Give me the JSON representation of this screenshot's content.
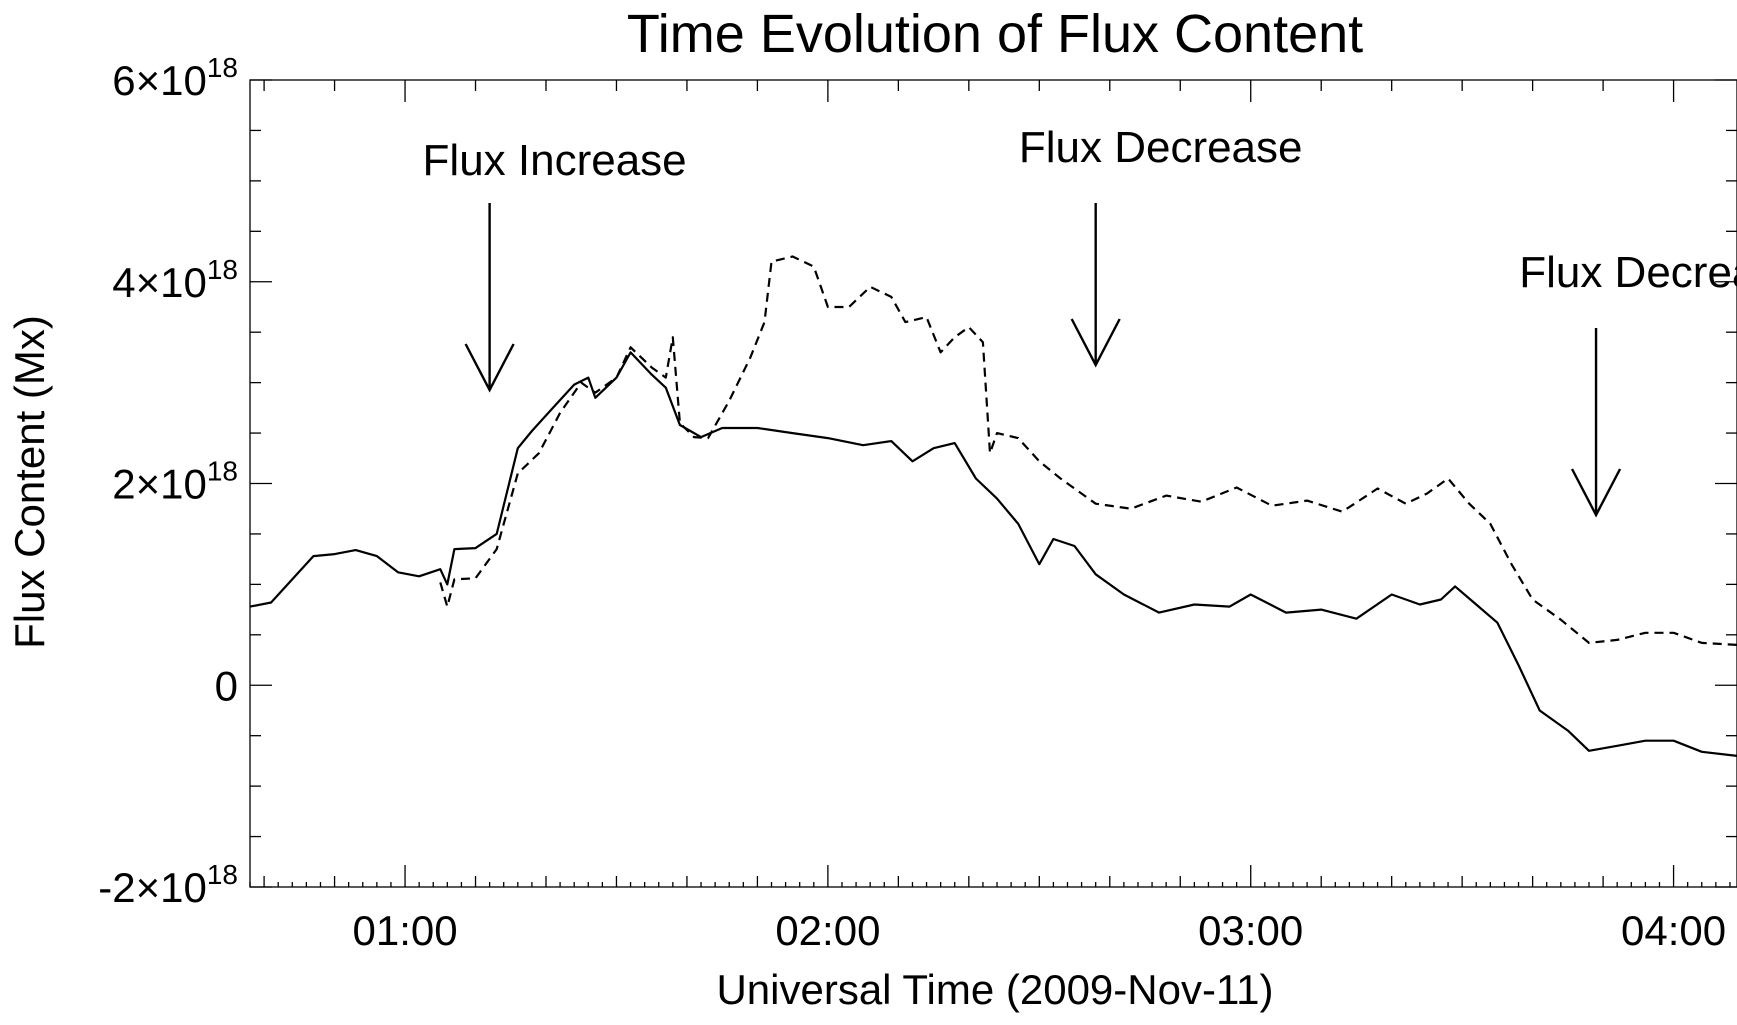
{
  "chart_data": {
    "type": "line",
    "title": "Time Evolution of Flux Content",
    "xlabel": "Universal Time (2009-Nov-11)",
    "ylabel": "Flux Content (Mx)",
    "x_unit": "UT time of day",
    "xlim": [
      "00:38",
      "04:09"
    ],
    "ylim": [
      -2e+18,
      6e+18
    ],
    "x_ticks": [
      {
        "value": "01:00",
        "label": "01:00"
      },
      {
        "value": "02:00",
        "label": "02:00"
      },
      {
        "value": "03:00",
        "label": "03:00"
      },
      {
        "value": "04:00",
        "label": "04:00"
      }
    ],
    "y_ticks": [
      {
        "value": 6e+18,
        "label": "6×10",
        "exp": "18"
      },
      {
        "value": 4e+18,
        "label": "4×10",
        "exp": "18"
      },
      {
        "value": 2e+18,
        "label": "2×10",
        "exp": "18"
      },
      {
        "value": 0,
        "label": "0",
        "exp": ""
      },
      {
        "value": -2e+18,
        "label": "-2×10",
        "exp": "18"
      }
    ],
    "grid": false,
    "series": [
      {
        "style": "solid",
        "points": [
          [
            "00:38",
            7.8e+17
          ],
          [
            "00:41",
            8.2e+17
          ],
          [
            "00:44",
            1.05e+18
          ],
          [
            "00:47",
            1.28e+18
          ],
          [
            "00:50",
            1.3e+18
          ],
          [
            "00:53",
            1.34e+18
          ],
          [
            "00:56",
            1.28e+18
          ],
          [
            "00:59",
            1.12e+18
          ],
          [
            "01:02",
            1.08e+18
          ],
          [
            "01:05",
            1.15e+18
          ],
          [
            "01:06",
            1e+18
          ],
          [
            "01:07",
            1.35e+18
          ],
          [
            "01:10",
            1.36e+18
          ],
          [
            "01:13",
            1.5e+18
          ],
          [
            "01:16",
            2.35e+18
          ],
          [
            "01:18",
            2.52e+18
          ],
          [
            "01:21",
            2.75e+18
          ],
          [
            "01:24",
            2.98e+18
          ],
          [
            "01:26",
            3.05e+18
          ],
          [
            "01:27",
            2.85e+18
          ],
          [
            "01:30",
            3.05e+18
          ],
          [
            "01:32",
            3.3e+18
          ],
          [
            "01:35",
            3.08e+18
          ],
          [
            "01:37",
            2.95e+18
          ],
          [
            "01:39",
            2.58e+18
          ],
          [
            "01:42",
            2.46e+18
          ],
          [
            "01:45",
            2.55e+18
          ],
          [
            "01:50",
            2.55e+18
          ],
          [
            "01:55",
            2.5e+18
          ],
          [
            "02:00",
            2.45e+18
          ],
          [
            "02:05",
            2.38e+18
          ],
          [
            "02:09",
            2.42e+18
          ],
          [
            "02:12",
            2.22e+18
          ],
          [
            "02:15",
            2.35e+18
          ],
          [
            "02:18",
            2.4e+18
          ],
          [
            "02:21",
            2.05e+18
          ],
          [
            "02:24",
            1.85e+18
          ],
          [
            "02:27",
            1.6e+18
          ],
          [
            "02:30",
            1.2e+18
          ],
          [
            "02:32",
            1.45e+18
          ],
          [
            "02:35",
            1.38e+18
          ],
          [
            "02:38",
            1.1e+18
          ],
          [
            "02:42",
            9e+17
          ],
          [
            "02:47",
            7.2e+17
          ],
          [
            "02:52",
            8e+17
          ],
          [
            "02:57",
            7.8e+17
          ],
          [
            "03:00",
            9e+17
          ],
          [
            "03:05",
            7.2e+17
          ],
          [
            "03:10",
            7.5e+17
          ],
          [
            "03:15",
            6.6e+17
          ],
          [
            "03:20",
            9e+17
          ],
          [
            "03:24",
            8e+17
          ],
          [
            "03:27",
            8.5e+17
          ],
          [
            "03:29",
            9.8e+17
          ],
          [
            "03:32",
            8e+17
          ],
          [
            "03:35",
            6.2e+17
          ],
          [
            "03:38",
            2e+17
          ],
          [
            "03:41",
            -2.5e+17
          ],
          [
            "03:45",
            -4.5e+17
          ],
          [
            "03:48",
            -6.5e+17
          ],
          [
            "03:52",
            -6e+17
          ],
          [
            "03:56",
            -5.5e+17
          ],
          [
            "04:00",
            -5.5e+17
          ],
          [
            "04:04",
            -6.6e+17
          ],
          [
            "04:09",
            -7e+17
          ]
        ]
      },
      {
        "style": "dashed",
        "points": [
          [
            "01:05",
            1.02e+18
          ],
          [
            "01:06",
            7.8e+17
          ],
          [
            "01:07",
            1.05e+18
          ],
          [
            "01:10",
            1.06e+18
          ],
          [
            "01:13",
            1.35e+18
          ],
          [
            "01:16",
            2.1e+18
          ],
          [
            "01:19",
            2.3e+18
          ],
          [
            "01:22",
            2.7e+18
          ],
          [
            "01:25",
            3e+18
          ],
          [
            "01:27",
            2.9e+18
          ],
          [
            "01:30",
            3.05e+18
          ],
          [
            "01:32",
            3.35e+18
          ],
          [
            "01:35",
            3.15e+18
          ],
          [
            "01:37",
            3.05e+18
          ],
          [
            "01:38",
            3.45e+18
          ],
          [
            "01:39",
            2.6e+18
          ],
          [
            "01:41",
            2.46e+18
          ],
          [
            "01:43",
            2.45e+18
          ],
          [
            "01:46",
            2.82e+18
          ],
          [
            "01:49",
            3.25e+18
          ],
          [
            "01:51",
            3.6e+18
          ],
          [
            "01:52",
            4.2e+18
          ],
          [
            "01:55",
            4.25e+18
          ],
          [
            "01:58",
            4.15e+18
          ],
          [
            "02:00",
            3.75e+18
          ],
          [
            "02:03",
            3.75e+18
          ],
          [
            "02:06",
            3.95e+18
          ],
          [
            "02:09",
            3.85e+18
          ],
          [
            "02:11",
            3.6e+18
          ],
          [
            "02:14",
            3.65e+18
          ],
          [
            "02:16",
            3.3e+18
          ],
          [
            "02:18",
            3.45e+18
          ],
          [
            "02:20",
            3.55e+18
          ],
          [
            "02:22",
            3.4e+18
          ],
          [
            "02:23",
            2.3e+18
          ],
          [
            "02:24",
            2.5e+18
          ],
          [
            "02:27",
            2.45e+18
          ],
          [
            "02:30",
            2.22e+18
          ],
          [
            "02:33",
            2.05e+18
          ],
          [
            "02:38",
            1.8e+18
          ],
          [
            "02:43",
            1.75e+18
          ],
          [
            "02:48",
            1.88e+18
          ],
          [
            "02:53",
            1.82e+18
          ],
          [
            "02:58",
            1.96e+18
          ],
          [
            "03:03",
            1.78e+18
          ],
          [
            "03:08",
            1.83e+18
          ],
          [
            "03:13",
            1.72e+18
          ],
          [
            "03:18",
            1.95e+18
          ],
          [
            "03:22",
            1.8e+18
          ],
          [
            "03:25",
            1.9e+18
          ],
          [
            "03:28",
            2.05e+18
          ],
          [
            "03:31",
            1.8e+18
          ],
          [
            "03:34",
            1.6e+18
          ],
          [
            "03:37",
            1.2e+18
          ],
          [
            "03:40",
            8.5e+17
          ],
          [
            "03:44",
            6.5e+17
          ],
          [
            "03:48",
            4.2e+17
          ],
          [
            "03:52",
            4.5e+17
          ],
          [
            "03:56",
            5.2e+17
          ],
          [
            "04:00",
            5.2e+17
          ],
          [
            "04:04",
            4.2e+17
          ],
          [
            "04:09",
            4e+17
          ]
        ]
      }
    ],
    "annotations": [
      {
        "text": "Flux Increase",
        "arrow_at": "01:12"
      },
      {
        "text": "Flux Decrease",
        "arrow_at": "02:38"
      },
      {
        "text": "Flux Decrease",
        "arrow_at": "03:49"
      }
    ]
  }
}
